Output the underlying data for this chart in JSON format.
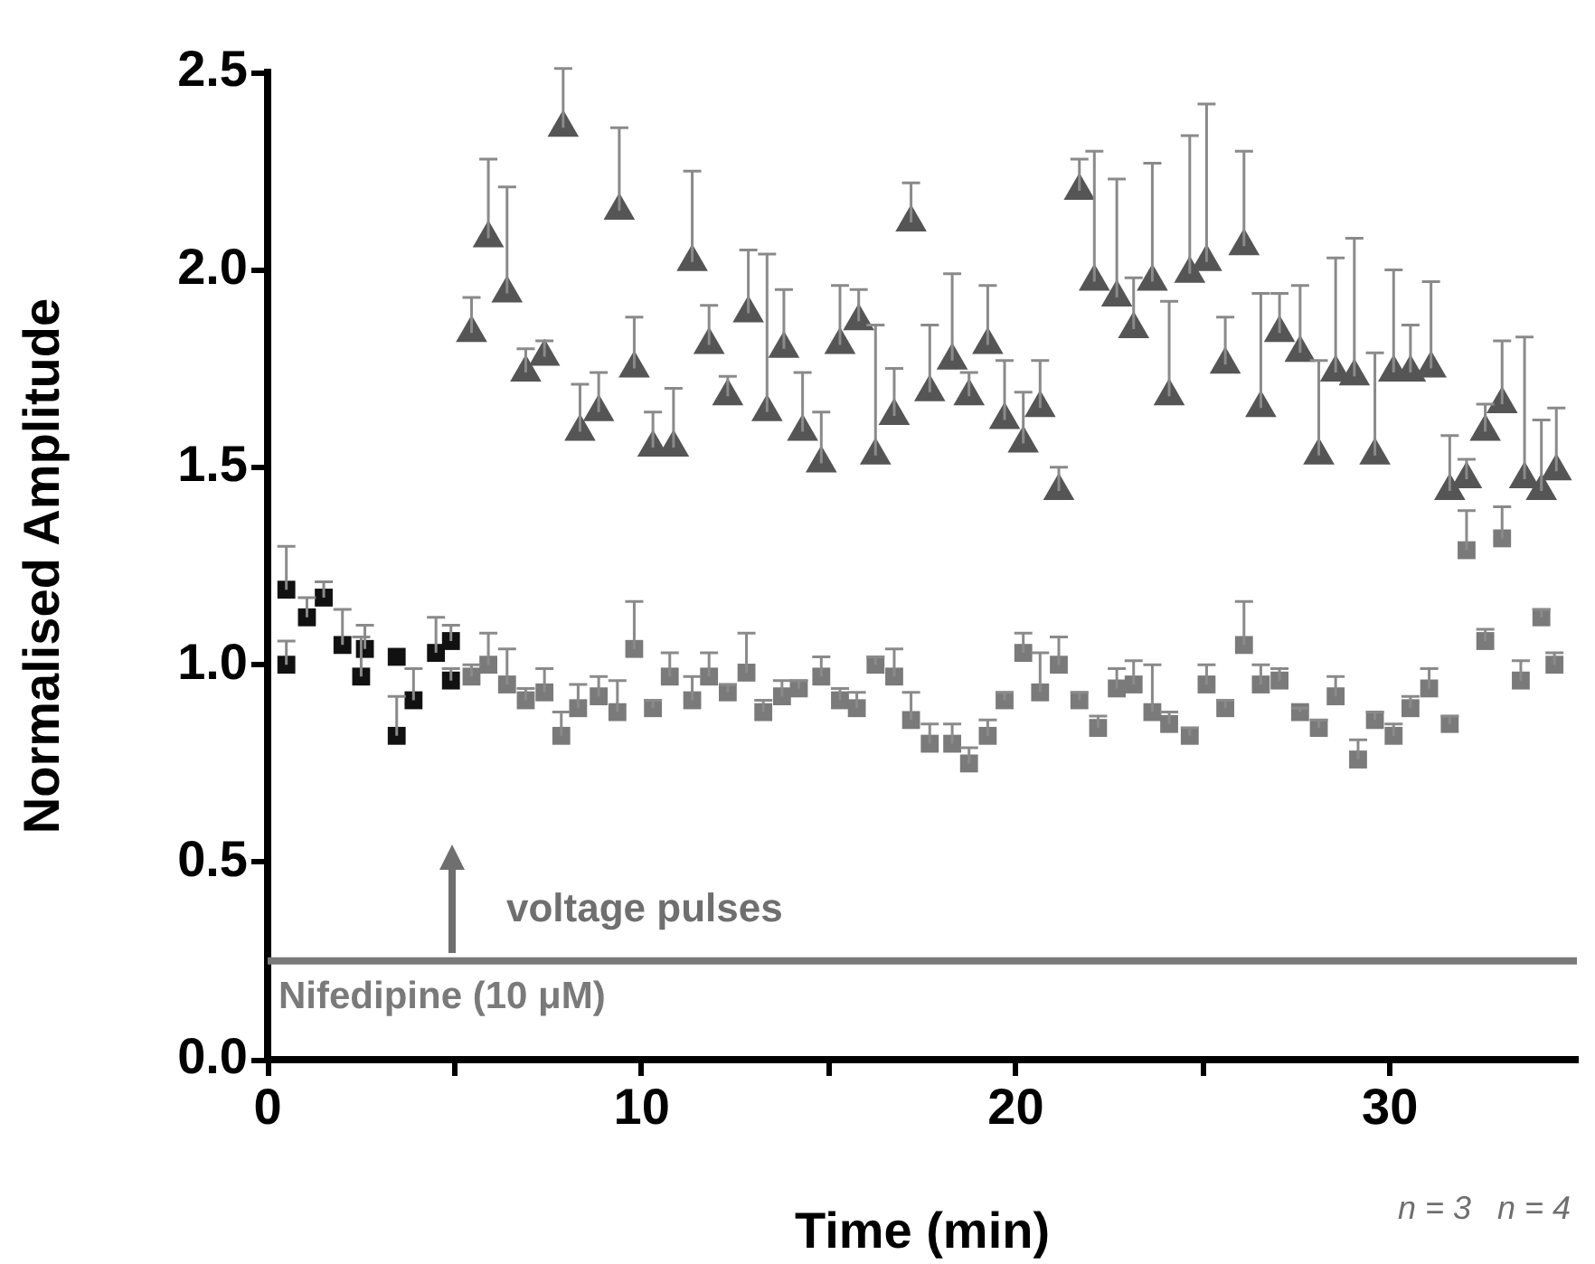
{
  "chart_data": {
    "type": "scatter",
    "xlabel": "Time (min)",
    "ylabel": "Normalised Amplitude",
    "xlim": [
      0,
      35
    ],
    "ylim": [
      0,
      2.5
    ],
    "xticks": [
      0,
      {
        "value": 5,
        "label": null
      },
      10,
      {
        "value": 15,
        "label": null
      },
      20,
      {
        "value": 25,
        "label": null
      },
      30
    ],
    "yticks": [
      {
        "value": 0,
        "label": "0.0"
      },
      0.5,
      {
        "value": 1,
        "label": "1.0"
      },
      1.5,
      {
        "value": 2,
        "label": "2.0"
      },
      2.5
    ],
    "legend": false,
    "series": [
      {
        "color": "#111111",
        "marker": "square",
        "x": [
          0.5,
          0.5,
          1.05,
          1.5,
          2.0,
          2.5,
          2.6,
          3.45,
          3.45,
          3.9,
          4.5,
          4.9,
          4.9
        ],
        "values": [
          1.19,
          1.0,
          1.12,
          1.17,
          1.05,
          0.97,
          1.04,
          1.02,
          0.82,
          0.91,
          1.03,
          1.06,
          0.96
        ],
        "errors": [
          [
            1.19,
            1.3
          ],
          [
            1.0,
            1.06
          ],
          [
            1.12,
            1.17
          ],
          [
            1.17,
            1.21
          ],
          [
            1.05,
            1.14
          ],
          [
            0.97,
            1.07
          ],
          [
            1.04,
            1.1
          ],
          null,
          [
            0.82,
            0.92
          ],
          [
            0.91,
            0.99
          ],
          [
            1.03,
            1.12
          ],
          [
            1.06,
            1.1
          ],
          [
            0.96,
            0.99
          ]
        ]
      },
      {
        "color": "#7a7a7a",
        "marker": "square",
        "x": [
          5.45,
          5.9,
          6.4,
          6.9,
          7.4,
          7.85,
          8.3,
          8.85,
          9.35,
          9.8,
          10.3,
          10.75,
          11.35,
          11.8,
          12.3,
          12.8,
          13.25,
          13.75,
          14.2,
          14.8,
          15.3,
          15.75,
          16.25,
          16.75,
          17.2,
          17.7,
          18.3,
          18.75,
          19.25,
          19.7,
          20.2,
          20.65,
          21.15,
          21.7,
          22.2,
          22.7,
          23.15,
          23.65,
          24.1,
          24.65,
          25.1,
          25.6,
          26.1,
          26.55,
          27.05,
          27.6,
          28.1,
          28.55,
          29.15,
          29.6,
          30.1,
          30.55,
          31.05,
          31.6,
          32.05,
          32.55,
          33.0,
          33.5,
          34.05,
          34.4
        ],
        "values": [
          0.97,
          1.0,
          0.95,
          0.91,
          0.93,
          0.82,
          0.89,
          0.92,
          0.88,
          1.04,
          0.89,
          0.97,
          0.91,
          0.97,
          0.93,
          0.98,
          0.88,
          0.92,
          0.94,
          0.97,
          0.91,
          0.89,
          1.0,
          0.97,
          0.86,
          0.8,
          0.8,
          0.75,
          0.82,
          0.91,
          1.03,
          0.93,
          1.0,
          0.91,
          0.84,
          0.94,
          0.95,
          0.88,
          0.85,
          0.82,
          0.95,
          0.89,
          1.05,
          0.95,
          0.96,
          0.88,
          0.84,
          0.92,
          0.76,
          0.86,
          0.82,
          0.89,
          0.94,
          0.85,
          1.29,
          1.06,
          1.32,
          0.96,
          1.12,
          1.0
        ],
        "errors": [
          [
            0.97,
            1.0
          ],
          [
            1.0,
            1.08
          ],
          [
            0.95,
            1.04
          ],
          [
            0.91,
            0.94
          ],
          [
            0.93,
            0.99
          ],
          [
            0.82,
            0.88
          ],
          [
            0.89,
            0.95
          ],
          [
            0.92,
            0.97
          ],
          [
            0.88,
            0.96
          ],
          [
            1.04,
            1.16
          ],
          [
            0.89,
            0.91
          ],
          [
            0.97,
            1.03
          ],
          [
            0.91,
            0.97
          ],
          [
            0.97,
            1.03
          ],
          [
            0.93,
            0.95
          ],
          [
            0.98,
            1.08
          ],
          [
            0.88,
            0.91
          ],
          [
            0.92,
            0.96
          ],
          [
            0.94,
            0.96
          ],
          [
            0.97,
            1.02
          ],
          [
            0.91,
            0.94
          ],
          [
            0.89,
            0.93
          ],
          [
            1.0,
            1.02
          ],
          [
            0.97,
            1.04
          ],
          [
            0.86,
            0.93
          ],
          [
            0.8,
            0.85
          ],
          [
            0.8,
            0.85
          ],
          [
            0.75,
            0.79
          ],
          [
            0.82,
            0.86
          ],
          [
            0.91,
            0.93
          ],
          [
            1.03,
            1.08
          ],
          [
            0.93,
            1.03
          ],
          [
            1.0,
            1.07
          ],
          [
            0.91,
            0.93
          ],
          [
            0.84,
            0.87
          ],
          [
            0.94,
            0.99
          ],
          [
            0.95,
            1.01
          ],
          [
            0.88,
            1.0
          ],
          [
            0.85,
            0.88
          ],
          [
            0.82,
            0.84
          ],
          [
            0.95,
            1.0
          ],
          [
            0.89,
            0.91
          ],
          [
            1.05,
            1.16
          ],
          [
            0.95,
            1.0
          ],
          [
            0.96,
            0.99
          ],
          [
            0.88,
            0.89
          ],
          [
            0.84,
            0.86
          ],
          [
            0.92,
            0.97
          ],
          [
            0.76,
            0.81
          ],
          [
            0.86,
            0.88
          ],
          [
            0.82,
            0.85
          ],
          [
            0.89,
            0.92
          ],
          [
            0.94,
            0.99
          ],
          [
            0.85,
            0.87
          ],
          [
            1.29,
            1.39
          ],
          [
            1.06,
            1.09
          ],
          [
            1.32,
            1.4
          ],
          [
            0.96,
            1.01
          ],
          [
            1.12,
            1.14
          ],
          [
            1.0,
            1.03
          ]
        ]
      },
      {
        "color": "#555555",
        "marker": "triangle",
        "x": [
          5.45,
          5.9,
          6.4,
          6.9,
          7.4,
          7.9,
          8.35,
          8.85,
          9.4,
          9.8,
          10.3,
          10.85,
          11.35,
          11.8,
          12.3,
          12.85,
          13.35,
          13.8,
          14.3,
          14.8,
          15.3,
          15.8,
          16.25,
          16.75,
          17.2,
          17.7,
          18.3,
          18.75,
          19.25,
          19.7,
          20.2,
          20.65,
          21.15,
          21.7,
          22.1,
          22.7,
          23.15,
          23.65,
          24.1,
          24.65,
          25.1,
          25.6,
          26.1,
          26.55,
          27.05,
          27.6,
          28.1,
          28.55,
          29.05,
          29.6,
          30.1,
          30.55,
          31.1,
          31.6,
          32.05,
          32.55,
          33.0,
          33.6,
          34.05,
          34.45
        ],
        "values": [
          1.84,
          2.08,
          1.94,
          1.74,
          1.78,
          2.36,
          1.59,
          1.64,
          2.15,
          1.75,
          1.55,
          1.55,
          2.02,
          1.81,
          1.68,
          1.89,
          1.64,
          1.8,
          1.59,
          1.51,
          1.81,
          1.87,
          1.53,
          1.63,
          2.12,
          1.69,
          1.77,
          1.68,
          1.81,
          1.62,
          1.56,
          1.65,
          1.44,
          2.2,
          1.97,
          1.93,
          1.85,
          1.97,
          1.68,
          1.99,
          2.02,
          1.76,
          2.06,
          1.65,
          1.84,
          1.79,
          1.53,
          1.74,
          1.73,
          1.53,
          1.74,
          1.74,
          1.75,
          1.44,
          1.47,
          1.59,
          1.66,
          1.47,
          1.44,
          1.49
        ],
        "errors": [
          [
            1.84,
            1.93
          ],
          [
            2.08,
            2.28
          ],
          [
            1.94,
            2.21
          ],
          [
            1.74,
            1.8
          ],
          [
            1.78,
            1.82
          ],
          [
            2.36,
            2.51
          ],
          [
            1.59,
            1.71
          ],
          [
            1.64,
            1.74
          ],
          [
            2.15,
            2.36
          ],
          [
            1.75,
            1.88
          ],
          [
            1.55,
            1.64
          ],
          [
            1.55,
            1.7
          ],
          [
            2.02,
            2.25
          ],
          [
            1.81,
            1.91
          ],
          [
            1.68,
            1.73
          ],
          [
            1.89,
            2.05
          ],
          [
            1.64,
            2.04
          ],
          [
            1.8,
            1.95
          ],
          [
            1.59,
            1.74
          ],
          [
            1.51,
            1.64
          ],
          [
            1.81,
            1.96
          ],
          [
            1.87,
            1.95
          ],
          [
            1.53,
            1.86
          ],
          [
            1.63,
            1.75
          ],
          [
            2.12,
            2.22
          ],
          [
            1.69,
            1.86
          ],
          [
            1.77,
            1.99
          ],
          [
            1.68,
            1.74
          ],
          [
            1.81,
            1.96
          ],
          [
            1.62,
            1.77
          ],
          [
            1.56,
            1.69
          ],
          [
            1.65,
            1.77
          ],
          [
            1.44,
            1.5
          ],
          [
            2.2,
            2.28
          ],
          [
            1.97,
            2.3
          ],
          [
            1.93,
            2.23
          ],
          [
            1.85,
            1.98
          ],
          [
            1.97,
            2.27
          ],
          [
            1.68,
            1.92
          ],
          [
            1.99,
            2.34
          ],
          [
            2.02,
            2.42
          ],
          [
            1.76,
            1.88
          ],
          [
            2.06,
            2.3
          ],
          [
            1.65,
            1.94
          ],
          [
            1.84,
            1.94
          ],
          [
            1.79,
            1.96
          ],
          [
            1.53,
            1.77
          ],
          [
            1.74,
            2.03
          ],
          [
            1.73,
            2.08
          ],
          [
            1.53,
            1.79
          ],
          [
            1.74,
            2.0
          ],
          [
            1.74,
            1.86
          ],
          [
            1.75,
            1.97
          ],
          [
            1.44,
            1.58
          ],
          [
            1.47,
            1.52
          ],
          [
            1.59,
            1.66
          ],
          [
            1.66,
            1.82
          ],
          [
            1.47,
            1.83
          ],
          [
            1.44,
            1.62
          ],
          [
            1.49,
            1.65
          ]
        ]
      }
    ],
    "ref_lines": [
      {
        "axis": "y",
        "value": 0.25,
        "label": "Nifedipine (10 μM)",
        "color": "#7a7a7a"
      }
    ],
    "annotations": [
      "voltage pulses",
      "n = 3",
      "n = 4"
    ]
  }
}
